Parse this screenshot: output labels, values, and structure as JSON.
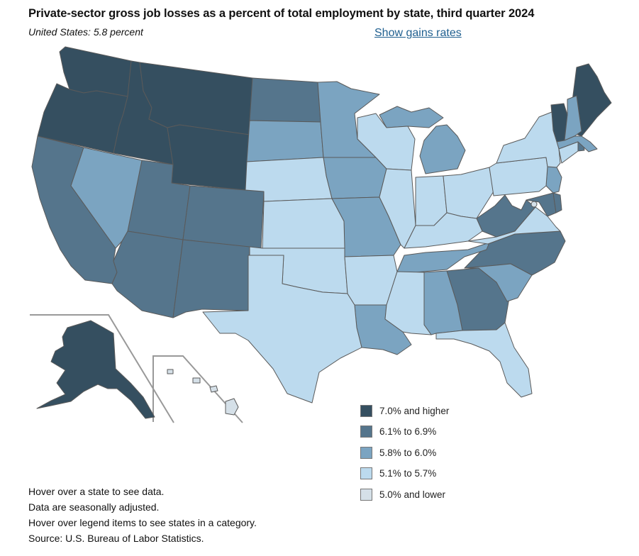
{
  "title": "Private-sector gross job losses as a percent of total employment by state, third quarter 2024",
  "subtitle": "United States: 5.8 percent",
  "toggle_link": "Show gains rates",
  "legend": [
    {
      "label": "7.0% and higher",
      "color": "#354f60"
    },
    {
      "label": "6.1% to 6.9%",
      "color": "#55758c"
    },
    {
      "label": "5.8% to 6.0%",
      "color": "#7ba4c1"
    },
    {
      "label": "5.1% to 5.7%",
      "color": "#bcdaee"
    },
    {
      "label": "5.0% and lower",
      "color": "#d5e0e8"
    }
  ],
  "notes": [
    "Hover over a state to see data.",
    "Data are seasonally adjusted.",
    "Hover over legend items to see states in a category.",
    "Source: U.S. Bureau of Labor Statistics."
  ]
}
